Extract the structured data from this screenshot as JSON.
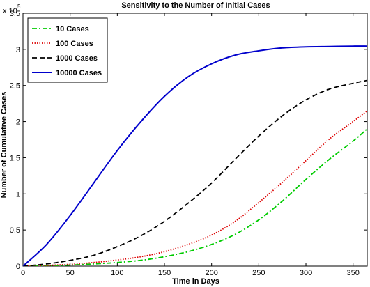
{
  "chart_data": {
    "type": "line",
    "title": "Sensitivity to the Number of Initial Cases",
    "xlabel": "Time in Days",
    "ylabel": "Number of Cumulative Cases",
    "y_multiplier": {
      "base": "x 10",
      "exponent": "5"
    },
    "xlim": [
      0,
      365
    ],
    "ylim": [
      0,
      3.5
    ],
    "x_ticks": [
      0,
      50,
      100,
      150,
      200,
      250,
      300,
      350
    ],
    "y_ticks": [
      0,
      0.5,
      1,
      1.5,
      2,
      2.5,
      3,
      3.5
    ],
    "x_tick_labels": [
      "0",
      "50",
      "100",
      "150",
      "200",
      "250",
      "300",
      "350"
    ],
    "y_tick_labels": [
      "0",
      "0.5",
      "1",
      "1.5",
      "2",
      "2.5",
      "3",
      "3.5"
    ],
    "grid": false,
    "legend_position": "top-left",
    "x": [
      0,
      25,
      50,
      75,
      100,
      125,
      150,
      175,
      200,
      225,
      250,
      275,
      300,
      325,
      350,
      365
    ],
    "series": [
      {
        "name": "10 Cases",
        "color": "#00cc00",
        "dash": "dash-dot",
        "values": [
          0,
          0.005,
          0.015,
          0.03,
          0.05,
          0.08,
          0.13,
          0.2,
          0.3,
          0.44,
          0.64,
          0.9,
          1.2,
          1.48,
          1.73,
          1.9
        ]
      },
      {
        "name": "100 Cases",
        "color": "#dd0000",
        "dash": "dotted",
        "values": [
          0,
          0.01,
          0.025,
          0.05,
          0.085,
          0.13,
          0.2,
          0.3,
          0.43,
          0.62,
          0.88,
          1.16,
          1.46,
          1.76,
          2.0,
          2.15
        ]
      },
      {
        "name": "1000 Cases",
        "color": "#000000",
        "dash": "dashed",
        "values": [
          0,
          0.03,
          0.08,
          0.15,
          0.27,
          0.42,
          0.62,
          0.87,
          1.15,
          1.48,
          1.8,
          2.08,
          2.3,
          2.45,
          2.53,
          2.57
        ]
      },
      {
        "name": "10000 Cases",
        "color": "#0000cc",
        "dash": "solid",
        "values": [
          0,
          0.3,
          0.7,
          1.15,
          1.6,
          2.0,
          2.35,
          2.62,
          2.8,
          2.92,
          2.98,
          3.02,
          3.035,
          3.04,
          3.045,
          3.045
        ]
      }
    ]
  }
}
